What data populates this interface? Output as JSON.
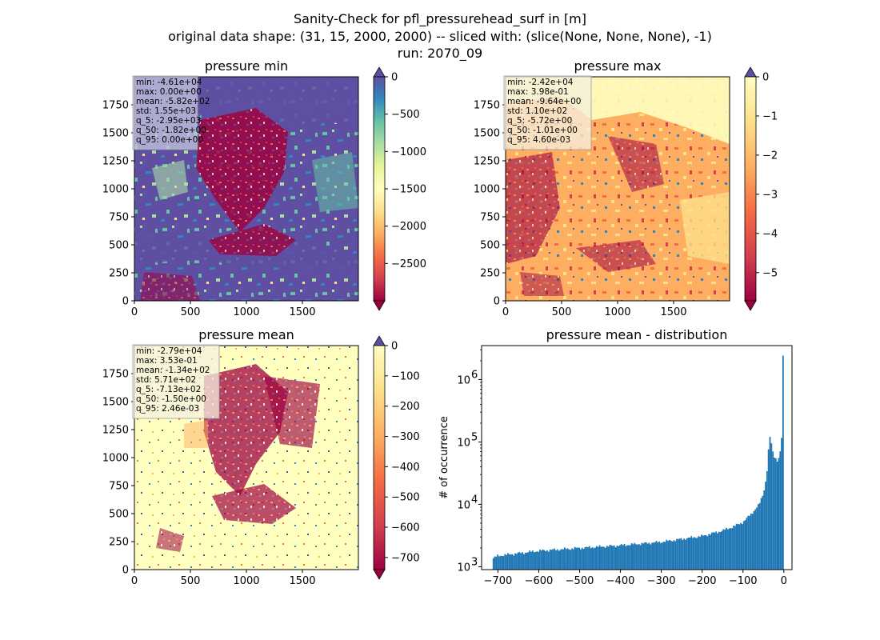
{
  "suptitle": [
    "Sanity-Check for pfl_pressurehead_surf in [m]",
    "original data shape: (31, 15, 2000, 2000) -- sliced with: (slice(None, None, None), -1)",
    "run: 2070_09"
  ],
  "chart_data": [
    {
      "type": "heatmap",
      "title": "pressure min",
      "colormap": "Spectral",
      "xlim": [
        0,
        2000
      ],
      "ylim": [
        0,
        2000
      ],
      "xticks": [
        "0",
        "500",
        "1000",
        "1500"
      ],
      "yticks": [
        "0",
        "250",
        "500",
        "750",
        "1000",
        "1250",
        "1500",
        "1750"
      ],
      "colorbar": {
        "min": -3000,
        "max": 0,
        "ticks": [
          "0",
          "−500",
          "−1000",
          "−1500",
          "−2000",
          "−2500"
        ],
        "tick_values": [
          0,
          -500,
          -1000,
          -1500,
          -2000,
          -2500
        ],
        "extend": "both"
      },
      "stats": [
        "min: -4.61e+04",
        "max: 0.00e+00",
        "mean: -5.82e+02",
        "std: 1.55e+03",
        "q_5: -2.95e+03",
        "q_50: -1.82e+00",
        "q_95: 0.00e+00"
      ]
    },
    {
      "type": "heatmap",
      "title": "pressure max",
      "colormap": "Spectral",
      "xlim": [
        0,
        2000
      ],
      "ylim": [
        0,
        2000
      ],
      "xticks": [
        "0",
        "500",
        "1000",
        "1500"
      ],
      "yticks": [
        "0",
        "250",
        "500",
        "750",
        "1000",
        "1250",
        "1500",
        "1750"
      ],
      "colorbar": {
        "min": -5.72,
        "max": 0,
        "ticks": [
          "0",
          "−1",
          "−2",
          "−3",
          "−4",
          "−5"
        ],
        "tick_values": [
          0,
          -1,
          -2,
          -3,
          -4,
          -5
        ],
        "extend": "both"
      },
      "stats": [
        "min: -2.42e+04",
        "max: 3.98e-01",
        "mean: -9.64e+00",
        "std: 1.10e+02",
        "q_5: -5.72e+00",
        "q_50: -1.01e+00",
        "q_95: 4.60e-03"
      ]
    },
    {
      "type": "heatmap",
      "title": "pressure mean",
      "colormap": "Spectral",
      "xlim": [
        0,
        2000
      ],
      "ylim": [
        0,
        2000
      ],
      "xticks": [
        "0",
        "500",
        "1000",
        "1500"
      ],
      "yticks": [
        "0",
        "250",
        "500",
        "750",
        "1000",
        "1250",
        "1500",
        "1750"
      ],
      "colorbar": {
        "min": -740,
        "max": 0,
        "ticks": [
          "0",
          "−100",
          "−200",
          "−300",
          "−400",
          "−500",
          "−600",
          "−700"
        ],
        "tick_values": [
          0,
          -100,
          -200,
          -300,
          -400,
          -500,
          -600,
          -700
        ],
        "extend": "both"
      },
      "stats": [
        "min: -2.79e+04",
        "max: 3.53e-01",
        "mean: -1.34e+02",
        "std: 5.71e+02",
        "q_5: -7.13e+02",
        "q_50: -1.50e+00",
        "q_95: 2.46e-03"
      ]
    },
    {
      "type": "bar",
      "title": "pressure mean - distribution",
      "ylabel": "# of occurrence",
      "xlabel": "",
      "yscale": "log",
      "xlim": [
        -740,
        20
      ],
      "ylim": [
        900,
        3500000
      ],
      "xticks": [
        -700,
        -600,
        -500,
        -400,
        -300,
        -200,
        -100,
        0
      ],
      "xtick_labels": [
        "−700",
        "−600",
        "−500",
        "−400",
        "−300",
        "−200",
        "−100",
        "0"
      ],
      "yticks": [
        1000,
        10000,
        100000,
        1000000
      ],
      "ytick_labels": [
        "10",
        "10",
        "10",
        "10"
      ],
      "ytick_exponents": [
        "3",
        "4",
        "5",
        "6"
      ],
      "color": "#1f77b4",
      "bin_edges_range": [
        -713,
        0
      ],
      "bins": 200,
      "profile_x": [
        -713,
        -700,
        -600,
        -500,
        -400,
        -300,
        -200,
        -150,
        -120,
        -100,
        -80,
        -60,
        -50,
        -45,
        -40,
        -35,
        -30,
        -25,
        -20,
        -15,
        -10,
        -5,
        -2,
        0
      ],
      "profile_y": [
        1350,
        1500,
        1800,
        2000,
        2200,
        2500,
        3100,
        3800,
        4500,
        5200,
        7000,
        10000,
        15000,
        22000,
        40000,
        130000,
        90000,
        60000,
        55000,
        50000,
        60000,
        120000,
        2300000,
        2300000
      ]
    }
  ]
}
